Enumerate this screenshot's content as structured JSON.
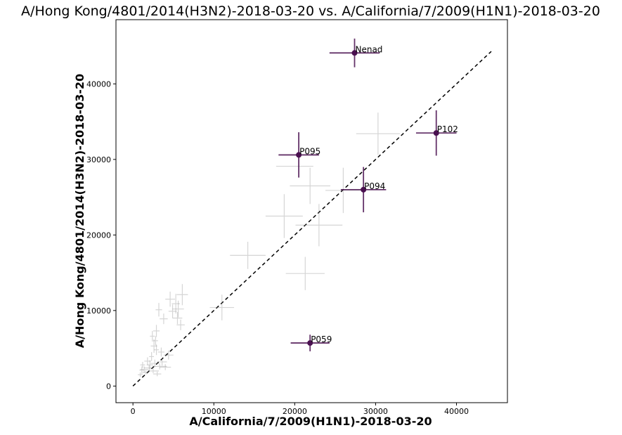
{
  "chart_data": {
    "type": "scatter",
    "title": "A/Hong Kong/4801/2014(H3N2)-2018-03-20 vs. A/California/7/2009(H1N1)-2018-03-20",
    "xlabel": "A/California/7/2009(H1N1)-2018-03-20",
    "ylabel": "A/Hong Kong/4801/2014(H3N2)-2018-03-20",
    "xlim": [
      -2100,
      46300
    ],
    "ylim": [
      -2200,
      48500
    ],
    "xticks": [
      0,
      10000,
      20000,
      30000,
      40000
    ],
    "yticks": [
      0,
      10000,
      20000,
      30000,
      40000
    ],
    "xtick_labels": [
      "0",
      "10000",
      "20000",
      "30000",
      "40000"
    ],
    "ytick_labels": [
      "0",
      "10000",
      "20000",
      "30000",
      "40000"
    ],
    "grid": false,
    "reference_line": {
      "style": "dashed",
      "color": "#000000",
      "from": [
        0,
        0
      ],
      "to": [
        44300,
        44300
      ]
    },
    "highlight_color": "#4a1050",
    "background_color": "#888888",
    "highlighted": [
      {
        "label": "Nenad",
        "x": 27400,
        "y": 44100,
        "xerr": 3100,
        "yerr": 1900
      },
      {
        "label": "P102",
        "x": 37500,
        "y": 33500,
        "xerr": 2500,
        "yerr": 3000
      },
      {
        "label": "P095",
        "x": 20500,
        "y": 30600,
        "xerr": 2500,
        "yerr": 3000
      },
      {
        "label": "P094",
        "x": 28500,
        "y": 26000,
        "xerr": 2800,
        "yerr": 3000
      },
      {
        "label": "P059",
        "x": 21900,
        "y": 5700,
        "xerr": 2400,
        "yerr": 1100
      }
    ],
    "background_points": [
      {
        "x": 30300,
        "y": 33400,
        "xerr": 2700,
        "yerr": 2800
      },
      {
        "x": 20000,
        "y": 29100,
        "xerr": 2300,
        "yerr": 0
      },
      {
        "x": 21900,
        "y": 26500,
        "xerr": 2500,
        "yerr": 2400
      },
      {
        "x": 26000,
        "y": 25900,
        "xerr": 2200,
        "yerr": 3000
      },
      {
        "x": 18700,
        "y": 22500,
        "xerr": 2300,
        "yerr": 2900
      },
      {
        "x": 23000,
        "y": 21300,
        "xerr": 2900,
        "yerr": 2800
      },
      {
        "x": 14200,
        "y": 17300,
        "xerr": 2200,
        "yerr": 1800
      },
      {
        "x": 21300,
        "y": 14900,
        "xerr": 2400,
        "yerr": 2200
      },
      {
        "x": 11000,
        "y": 10400,
        "xerr": 1500,
        "yerr": 1700
      },
      {
        "x": 6100,
        "y": 12100,
        "xerr": 700,
        "yerr": 1400
      },
      {
        "x": 5300,
        "y": 10900,
        "xerr": 500,
        "yerr": 1300
      },
      {
        "x": 4600,
        "y": 11500,
        "xerr": 600,
        "yerr": 1000
      },
      {
        "x": 5600,
        "y": 10200,
        "xerr": 700,
        "yerr": 1100
      },
      {
        "x": 4900,
        "y": 9900,
        "xerr": 500,
        "yerr": 900
      },
      {
        "x": 5500,
        "y": 9000,
        "xerr": 600,
        "yerr": 800
      },
      {
        "x": 5900,
        "y": 8100,
        "xerr": 500,
        "yerr": 700
      },
      {
        "x": 3800,
        "y": 8900,
        "xerr": 500,
        "yerr": 700
      },
      {
        "x": 3200,
        "y": 10100,
        "xerr": 400,
        "yerr": 900
      },
      {
        "x": 2900,
        "y": 7300,
        "xerr": 400,
        "yerr": 800
      },
      {
        "x": 2400,
        "y": 6600,
        "xerr": 300,
        "yerr": 700
      },
      {
        "x": 2600,
        "y": 5300,
        "xerr": 400,
        "yerr": 900
      },
      {
        "x": 2900,
        "y": 4800,
        "xerr": 300,
        "yerr": 700
      },
      {
        "x": 3500,
        "y": 4500,
        "xerr": 400,
        "yerr": 600
      },
      {
        "x": 4400,
        "y": 4100,
        "xerr": 600,
        "yerr": 600
      },
      {
        "x": 2300,
        "y": 3900,
        "xerr": 300,
        "yerr": 600
      },
      {
        "x": 1800,
        "y": 3300,
        "xerr": 400,
        "yerr": 500
      },
      {
        "x": 2700,
        "y": 3000,
        "xerr": 500,
        "yerr": 500
      },
      {
        "x": 3300,
        "y": 2600,
        "xerr": 900,
        "yerr": 400
      },
      {
        "x": 2000,
        "y": 2400,
        "xerr": 600,
        "yerr": 400
      },
      {
        "x": 1400,
        "y": 2200,
        "xerr": 500,
        "yerr": 400
      },
      {
        "x": 1200,
        "y": 2800,
        "xerr": 300,
        "yerr": 400
      },
      {
        "x": 2500,
        "y": 2000,
        "xerr": 700,
        "yerr": 300
      },
      {
        "x": 1600,
        "y": 1800,
        "xerr": 400,
        "yerr": 300
      },
      {
        "x": 900,
        "y": 1500,
        "xerr": 300,
        "yerr": 300
      },
      {
        "x": 3000,
        "y": 1600,
        "xerr": 500,
        "yerr": 300
      },
      {
        "x": 4000,
        "y": 2500,
        "xerr": 700,
        "yerr": 400
      },
      {
        "x": 1100,
        "y": 2100,
        "xerr": 300,
        "yerr": 500
      },
      {
        "x": 2100,
        "y": 2800,
        "xerr": 400,
        "yerr": 600
      },
      {
        "x": 3600,
        "y": 3200,
        "xerr": 600,
        "yerr": 500
      },
      {
        "x": 2800,
        "y": 6000,
        "xerr": 300,
        "yerr": 600
      }
    ]
  }
}
